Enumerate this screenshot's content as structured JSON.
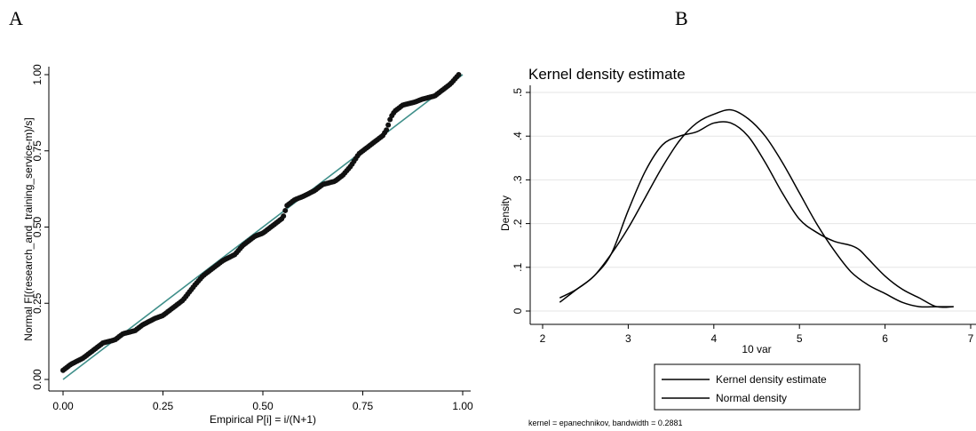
{
  "panels": {
    "a_label": "A",
    "b_label": "B"
  },
  "chart_data": [
    {
      "type": "scatter",
      "panel": "A",
      "title": "",
      "xlabel": "Empirical P[i] = i/(N+1)",
      "ylabel": "Normal F[(research_and_training_service-m)/s]",
      "xlim": [
        0,
        1
      ],
      "ylim": [
        0,
        1
      ],
      "xticks": [
        "0.00",
        "0.25",
        "0.50",
        "0.75",
        "1.00"
      ],
      "yticks": [
        "0.00",
        "0.25",
        "0.50",
        "0.75",
        "1.00"
      ],
      "grid": false,
      "colors": {
        "points": "#111111",
        "reference_line": "#3f8f8a"
      },
      "reference_line": [
        [
          0,
          0
        ],
        [
          1,
          1
        ]
      ],
      "curve": {
        "x": [
          0.0,
          0.02,
          0.05,
          0.08,
          0.1,
          0.13,
          0.15,
          0.18,
          0.2,
          0.23,
          0.25,
          0.28,
          0.3,
          0.33,
          0.35,
          0.38,
          0.4,
          0.43,
          0.45,
          0.48,
          0.5,
          0.53,
          0.55,
          0.56,
          0.58,
          0.6,
          0.63,
          0.65,
          0.68,
          0.7,
          0.72,
          0.74,
          0.76,
          0.78,
          0.8,
          0.81,
          0.82,
          0.83,
          0.85,
          0.88,
          0.9,
          0.93,
          0.95,
          0.97,
          0.99
        ],
        "y": [
          0.03,
          0.05,
          0.07,
          0.1,
          0.12,
          0.13,
          0.15,
          0.16,
          0.18,
          0.2,
          0.21,
          0.24,
          0.26,
          0.31,
          0.34,
          0.37,
          0.39,
          0.41,
          0.44,
          0.47,
          0.48,
          0.51,
          0.53,
          0.57,
          0.59,
          0.6,
          0.62,
          0.64,
          0.65,
          0.67,
          0.7,
          0.74,
          0.76,
          0.78,
          0.8,
          0.82,
          0.86,
          0.88,
          0.9,
          0.91,
          0.92,
          0.93,
          0.95,
          0.97,
          1.0
        ]
      },
      "n_points": 220
    },
    {
      "type": "line",
      "panel": "B",
      "title": "Kernel density estimate",
      "xlabel": "10 var",
      "ylabel": "Density",
      "xlim": [
        2,
        7
      ],
      "ylim": [
        0,
        0.5
      ],
      "xticks": [
        "2",
        "3",
        "4",
        "5",
        "6",
        "7"
      ],
      "yticks": [
        "0",
        ".1",
        ".2",
        ".3",
        ".4",
        ".5"
      ],
      "grid": true,
      "legend_position": "bottom",
      "note": "kernel = epanechnikov, bandwidth = 0.2881",
      "colors": {
        "grid": "#e6e6e6",
        "lines": "#000000"
      },
      "series": [
        {
          "name": "Kernel density estimate",
          "x": [
            2.2,
            2.4,
            2.6,
            2.8,
            3.0,
            3.2,
            3.4,
            3.6,
            3.8,
            4.0,
            4.2,
            4.4,
            4.6,
            4.8,
            5.0,
            5.2,
            5.4,
            5.6,
            5.7,
            5.8,
            6.0,
            6.2,
            6.4,
            6.6,
            6.8
          ],
          "y": [
            0.03,
            0.05,
            0.08,
            0.13,
            0.23,
            0.32,
            0.38,
            0.4,
            0.41,
            0.43,
            0.43,
            0.4,
            0.34,
            0.27,
            0.21,
            0.18,
            0.16,
            0.15,
            0.14,
            0.12,
            0.08,
            0.05,
            0.03,
            0.01,
            0.01
          ]
        },
        {
          "name": "Normal density",
          "x": [
            2.2,
            2.4,
            2.6,
            2.8,
            3.0,
            3.2,
            3.4,
            3.6,
            3.8,
            4.0,
            4.2,
            4.4,
            4.6,
            4.8,
            5.0,
            5.2,
            5.4,
            5.6,
            5.8,
            6.0,
            6.2,
            6.4,
            6.6,
            6.8
          ],
          "y": [
            0.02,
            0.05,
            0.08,
            0.13,
            0.19,
            0.26,
            0.33,
            0.39,
            0.43,
            0.45,
            0.46,
            0.44,
            0.4,
            0.34,
            0.27,
            0.2,
            0.14,
            0.09,
            0.06,
            0.04,
            0.02,
            0.01,
            0.01,
            0.01
          ]
        }
      ]
    }
  ]
}
